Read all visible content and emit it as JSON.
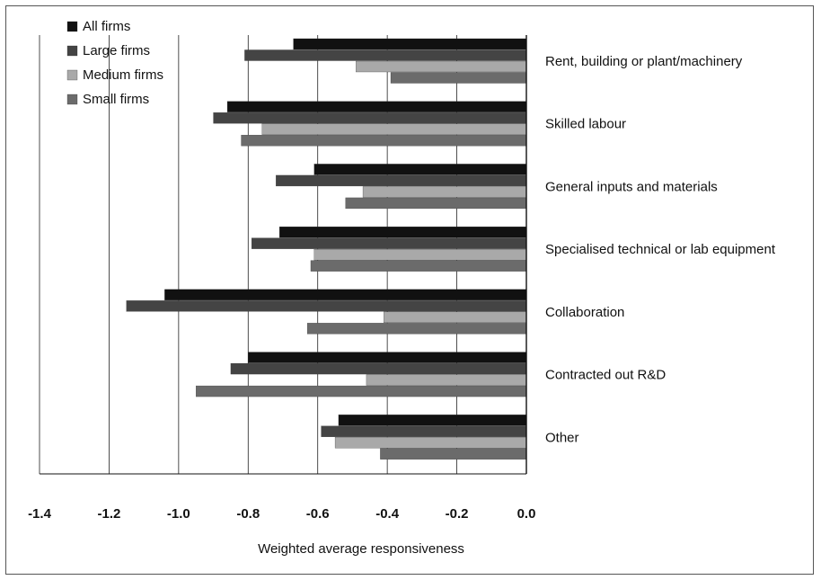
{
  "chart_data": {
    "type": "bar",
    "orientation": "horizontal",
    "categories": [
      "Rent, building or plant/machinery",
      "Skilled labour",
      "General inputs and materials",
      "Specialised technical or lab equipment",
      "Collaboration",
      "Contracted out R&D",
      "Other"
    ],
    "series": [
      {
        "name": "All firms",
        "color": "#111111",
        "values": [
          -0.67,
          -0.86,
          -0.61,
          -0.71,
          -1.04,
          -0.8,
          -0.54
        ]
      },
      {
        "name": "Large firms",
        "color": "#444444",
        "values": [
          -0.81,
          -0.9,
          -0.72,
          -0.79,
          -1.15,
          -0.85,
          -0.59
        ]
      },
      {
        "name": "Medium firms",
        "color": "#a9a9a9",
        "values": [
          -0.49,
          -0.76,
          -0.47,
          -0.61,
          -0.41,
          -0.46,
          -0.55
        ]
      },
      {
        "name": "Small firms",
        "color": "#6b6b6b",
        "values": [
          -0.39,
          -0.82,
          -0.52,
          -0.62,
          -0.63,
          -0.95,
          -0.42
        ]
      }
    ],
    "x_ticks": [
      "-1.4",
      "-1.2",
      "-1.0",
      "-0.8",
      "-0.6",
      "-0.4",
      "-0.2",
      "0.0"
    ],
    "x_tick_values": [
      -1.4,
      -1.2,
      -1.0,
      -0.8,
      -0.6,
      -0.4,
      -0.2,
      0.0
    ],
    "xlim": [
      -1.4,
      0.0
    ],
    "xlabel": "Weighted average responsiveness",
    "ylabel": "",
    "title": "",
    "grid": "vertical",
    "legend_position": "top-left"
  }
}
